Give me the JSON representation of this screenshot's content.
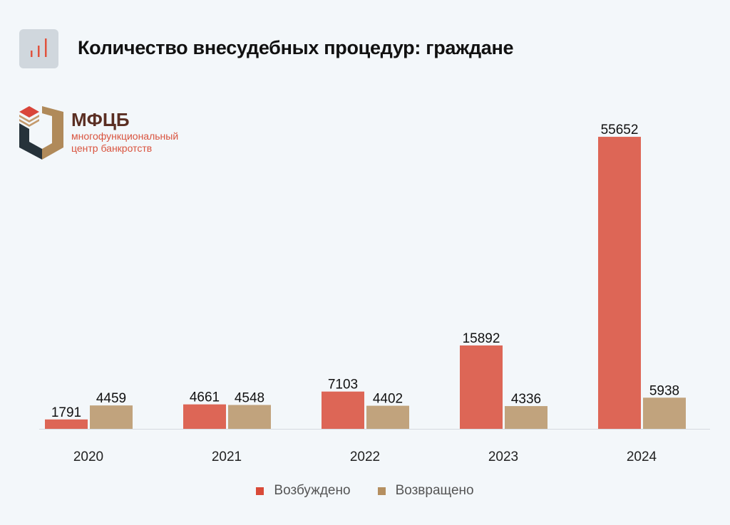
{
  "header": {
    "title": "Количество внесудебных процедур: граждане",
    "icon": "bar-chart-icon"
  },
  "logo": {
    "name": "МФЦБ",
    "subtitle_line1": "многофункциональный",
    "subtitle_line2": "центр банкротств"
  },
  "chart_data": {
    "type": "bar",
    "title": "Количество внесудебных процедур: граждане",
    "categories": [
      "2020",
      "2021",
      "2022",
      "2023",
      "2024"
    ],
    "series": [
      {
        "name": "Возбуждено",
        "values": [
          1791,
          4661,
          7103,
          15892,
          55652
        ],
        "color": "#dd6656",
        "legend_color": "#d94a38"
      },
      {
        "name": "Возвращено",
        "values": [
          4459,
          4548,
          4402,
          4336,
          5938
        ],
        "color": "#c1a37d",
        "legend_color": "#b58f60"
      }
    ],
    "xlabel": "",
    "ylabel": "",
    "ylim": [
      0,
      56000
    ],
    "grid": false,
    "data_labels": true,
    "legend": "bottom"
  }
}
